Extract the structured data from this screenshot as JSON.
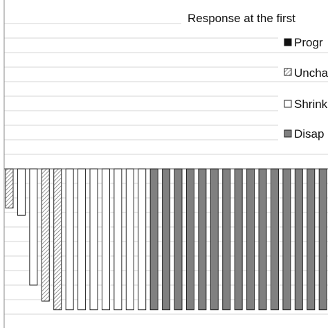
{
  "legend": {
    "title": "Response at the first",
    "items": [
      {
        "key": "progressive",
        "label": "Progr",
        "fill": "solid-black"
      },
      {
        "key": "unchanged",
        "label": "Uncha",
        "fill": "hatched-gray"
      },
      {
        "key": "shrinking",
        "label": "Shrink",
        "fill": "white"
      },
      {
        "key": "disappeared",
        "label": "Disap",
        "fill": "dark-gray"
      }
    ]
  },
  "colors": {
    "solid-black": "#111111",
    "dark-gray": "#808080",
    "white": "#ffffff",
    "hatch-line": "#777777",
    "stroke": "#222222",
    "grid": "#d6d6d6",
    "axis": "#888888"
  },
  "chart_data": {
    "type": "bar",
    "y_range": [
      -100,
      100
    ],
    "grid": true,
    "legend_position": "top-right",
    "values": [
      -27,
      -32,
      -80,
      -91,
      -97,
      -97,
      -97,
      -97,
      -97,
      -97,
      -97,
      -97,
      -97,
      -97,
      -97,
      -97,
      -97,
      -97,
      -97,
      -97,
      -97,
      -97,
      -97,
      -97,
      -97,
      -97,
      -97
    ],
    "categories_response": [
      "unchanged",
      "shrinking",
      "shrinking",
      "unchanged",
      "unchanged",
      "shrinking",
      "shrinking",
      "shrinking",
      "shrinking",
      "shrinking",
      "shrinking",
      "shrinking",
      "disappeared",
      "disappeared",
      "disappeared",
      "disappeared",
      "disappeared",
      "disappeared",
      "disappeared",
      "disappeared",
      "disappeared",
      "disappeared",
      "disappeared",
      "disappeared",
      "disappeared",
      "disappeared",
      "disappeared"
    ]
  }
}
